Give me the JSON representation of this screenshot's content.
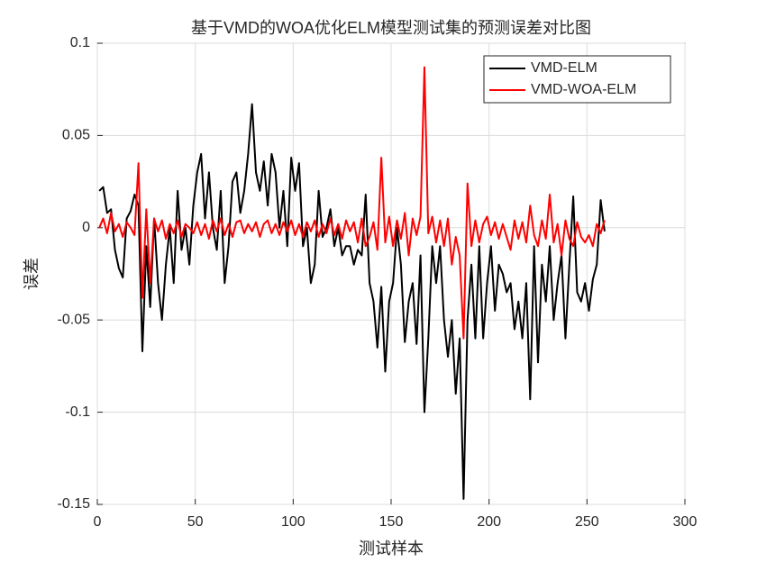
{
  "chart_data": {
    "type": "line",
    "title": "基于VMD的WOA优化ELM模型测试集的预测误差对比图",
    "x_label": "测试样本",
    "y_label": "误差",
    "x": [
      1,
      3,
      5,
      7,
      9,
      11,
      13,
      15,
      17,
      19,
      21,
      23,
      25,
      27,
      29,
      31,
      33,
      35,
      37,
      39,
      41,
      43,
      45,
      47,
      49,
      51,
      53,
      55,
      57,
      59,
      61,
      63,
      65,
      67,
      69,
      71,
      73,
      75,
      77,
      79,
      81,
      83,
      85,
      87,
      89,
      91,
      93,
      95,
      97,
      99,
      101,
      103,
      105,
      107,
      109,
      111,
      113,
      115,
      117,
      119,
      121,
      123,
      125,
      127,
      129,
      131,
      133,
      135,
      137,
      139,
      141,
      143,
      145,
      147,
      149,
      151,
      153,
      155,
      157,
      159,
      161,
      163,
      165,
      167,
      169,
      171,
      173,
      175,
      177,
      179,
      181,
      183,
      185,
      187,
      189,
      191,
      193,
      195,
      197,
      199,
      201,
      203,
      205,
      207,
      209,
      211,
      213,
      215,
      217,
      219,
      221,
      223,
      225,
      227,
      229,
      231,
      233,
      235,
      237,
      239,
      241,
      243,
      245,
      247,
      249,
      251,
      253,
      255,
      257,
      259
    ],
    "series": [
      {
        "name": "VMD-ELM",
        "color": "#000000",
        "values": [
          0.02,
          0.022,
          0.008,
          0.01,
          -0.012,
          -0.022,
          -0.027,
          0.005,
          0.009,
          0.018,
          0.012,
          -0.067,
          -0.01,
          -0.043,
          0.005,
          -0.03,
          -0.05,
          -0.02,
          0.0,
          -0.03,
          0.02,
          -0.012,
          0.0,
          -0.02,
          0.012,
          0.03,
          0.04,
          0.005,
          0.03,
          0.0,
          -0.012,
          0.02,
          -0.03,
          -0.01,
          0.025,
          0.03,
          0.008,
          0.02,
          0.04,
          0.067,
          0.03,
          0.02,
          0.036,
          0.012,
          0.04,
          0.03,
          0.0,
          0.02,
          -0.01,
          0.038,
          0.02,
          0.035,
          -0.01,
          0.0,
          -0.03,
          -0.02,
          0.02,
          -0.005,
          0.0,
          0.01,
          -0.01,
          0.0,
          -0.015,
          -0.01,
          -0.01,
          -0.02,
          -0.012,
          -0.015,
          0.018,
          -0.03,
          -0.04,
          -0.065,
          -0.032,
          -0.078,
          -0.04,
          -0.03,
          0.0,
          -0.02,
          -0.062,
          -0.04,
          -0.03,
          -0.063,
          -0.015,
          -0.1,
          -0.06,
          -0.01,
          -0.03,
          -0.01,
          -0.05,
          -0.07,
          -0.05,
          -0.09,
          -0.06,
          -0.147,
          -0.05,
          -0.02,
          -0.06,
          -0.01,
          -0.06,
          -0.03,
          -0.01,
          -0.045,
          -0.02,
          -0.025,
          -0.035,
          -0.03,
          -0.055,
          -0.04,
          -0.06,
          -0.03,
          -0.093,
          -0.01,
          -0.073,
          -0.02,
          -0.04,
          -0.01,
          -0.05,
          -0.03,
          -0.015,
          -0.06,
          -0.02,
          0.017,
          -0.035,
          -0.04,
          -0.03,
          -0.045,
          -0.028,
          -0.02,
          0.015,
          -0.002
        ]
      },
      {
        "name": "VMD-WOA-ELM",
        "color": "#ff0000",
        "values": [
          0.0,
          0.005,
          -0.003,
          0.008,
          -0.002,
          0.002,
          -0.005,
          0.003,
          0.0,
          -0.004,
          0.035,
          -0.038,
          0.01,
          -0.03,
          0.005,
          -0.002,
          0.004,
          -0.006,
          0.002,
          -0.003,
          0.004,
          -0.005,
          0.002,
          0.0,
          -0.003,
          0.003,
          -0.004,
          0.002,
          -0.006,
          0.004,
          -0.002,
          0.005,
          -0.004,
          0.002,
          -0.005,
          0.003,
          0.004,
          -0.003,
          0.002,
          -0.002,
          0.003,
          -0.005,
          0.002,
          0.004,
          -0.003,
          0.002,
          -0.004,
          0.003,
          -0.002,
          0.004,
          -0.004,
          0.002,
          -0.005,
          0.003,
          -0.002,
          0.004,
          -0.005,
          0.002,
          -0.003,
          0.005,
          -0.004,
          0.002,
          -0.006,
          0.004,
          -0.002,
          0.003,
          -0.008,
          0.005,
          -0.01,
          -0.005,
          0.003,
          -0.012,
          0.038,
          -0.008,
          0.006,
          -0.01,
          0.004,
          -0.006,
          0.008,
          -0.015,
          0.005,
          -0.004,
          0.006,
          0.087,
          -0.003,
          0.006,
          -0.008,
          0.004,
          -0.01,
          0.005,
          -0.02,
          -0.005,
          -0.015,
          -0.06,
          0.024,
          -0.01,
          0.004,
          -0.008,
          0.002,
          0.006,
          -0.004,
          0.003,
          -0.006,
          0.002,
          -0.005,
          -0.012,
          0.004,
          -0.006,
          0.003,
          -0.008,
          0.012,
          -0.004,
          -0.01,
          0.004,
          -0.006,
          0.018,
          -0.008,
          0.002,
          -0.015,
          0.004,
          -0.006,
          -0.01,
          0.003,
          -0.005,
          -0.008,
          -0.004,
          -0.01,
          0.002,
          -0.003,
          0.004
        ]
      }
    ],
    "xlim": [
      0,
      300
    ],
    "xticks": [
      0,
      50,
      100,
      150,
      200,
      250,
      300
    ],
    "ylim": [
      -0.15,
      0.1
    ],
    "yticks": [
      -0.15,
      -0.1,
      -0.05,
      0,
      0.05,
      0.1
    ],
    "grid": true,
    "legend": "upper-right"
  }
}
